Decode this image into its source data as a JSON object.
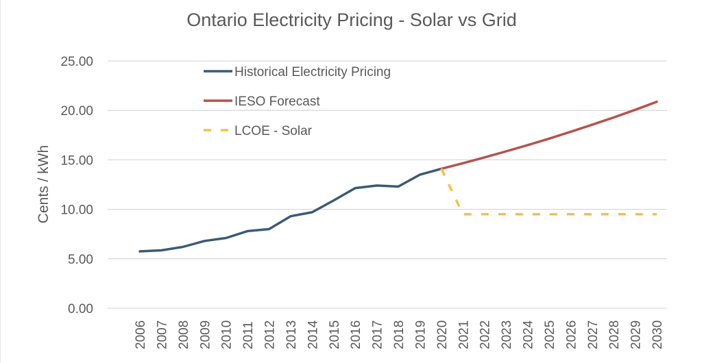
{
  "chart_data": {
    "type": "line",
    "title": "Ontario Electricity Pricing - Solar vs Grid",
    "xlabel": "",
    "ylabel": "Cents / kWh",
    "ylim": [
      0,
      25
    ],
    "yticks": [
      "0.00",
      "5.00",
      "10.00",
      "15.00",
      "20.00",
      "25.00"
    ],
    "grid": true,
    "legend_position": "top-left",
    "categories": [
      "2006",
      "2007",
      "2008",
      "2009",
      "2010",
      "2011",
      "2012",
      "2013",
      "2014",
      "2015",
      "2016",
      "2017",
      "2018",
      "2019",
      "2020",
      "2021",
      "2022",
      "2023",
      "2024",
      "2025",
      "2026",
      "2027",
      "2028",
      "2029",
      "2030"
    ],
    "series": [
      {
        "name": "Historical Electricity Pricing",
        "color": "#3b5a74",
        "style": "solid",
        "values": [
          5.75,
          5.85,
          6.2,
          6.8,
          7.1,
          7.8,
          8.0,
          9.3,
          9.7,
          10.9,
          12.15,
          12.4,
          12.3,
          13.5,
          14.1,
          null,
          null,
          null,
          null,
          null,
          null,
          null,
          null,
          null,
          null
        ]
      },
      {
        "name": "IESO Forecast",
        "color": "#b5524c",
        "style": "solid",
        "values": [
          null,
          null,
          null,
          null,
          null,
          null,
          null,
          null,
          null,
          null,
          null,
          null,
          null,
          null,
          14.1,
          14.66,
          15.25,
          15.86,
          16.49,
          17.15,
          17.84,
          18.55,
          19.29,
          20.06,
          20.87
        ]
      },
      {
        "name": "LCOE - Solar",
        "color": "#f4c145",
        "style": "dashed",
        "values": [
          null,
          null,
          null,
          null,
          null,
          null,
          null,
          null,
          null,
          null,
          null,
          null,
          null,
          null,
          14.1,
          9.5,
          9.5,
          9.5,
          9.5,
          9.5,
          9.5,
          9.5,
          9.5,
          9.5,
          9.5
        ]
      }
    ]
  }
}
